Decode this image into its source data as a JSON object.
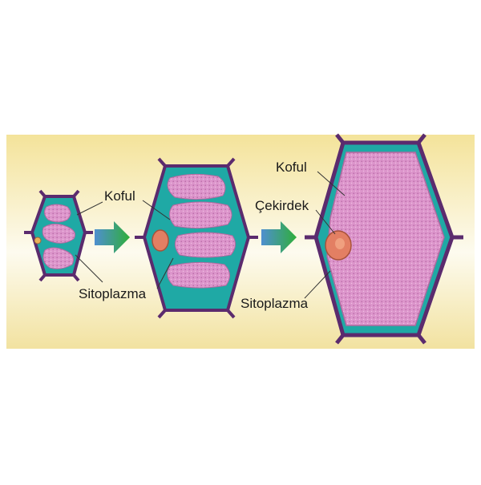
{
  "labels": {
    "koful_1": "Koful",
    "sitoplazma_1": "Sitoplazma",
    "koful_2": "Koful",
    "cekirdek": "Çekirdek",
    "sitoplazma_2": "Sitoplazma"
  },
  "colors": {
    "background_top": "#f3e6a4",
    "background_mid": "#ffffff",
    "cell_wall": "#5b2b6e",
    "cytoplasm": "#1fa9a5",
    "vacuole": "#d98fc8",
    "nucleus": "#e37f63",
    "arrow": "#2fa03e"
  }
}
